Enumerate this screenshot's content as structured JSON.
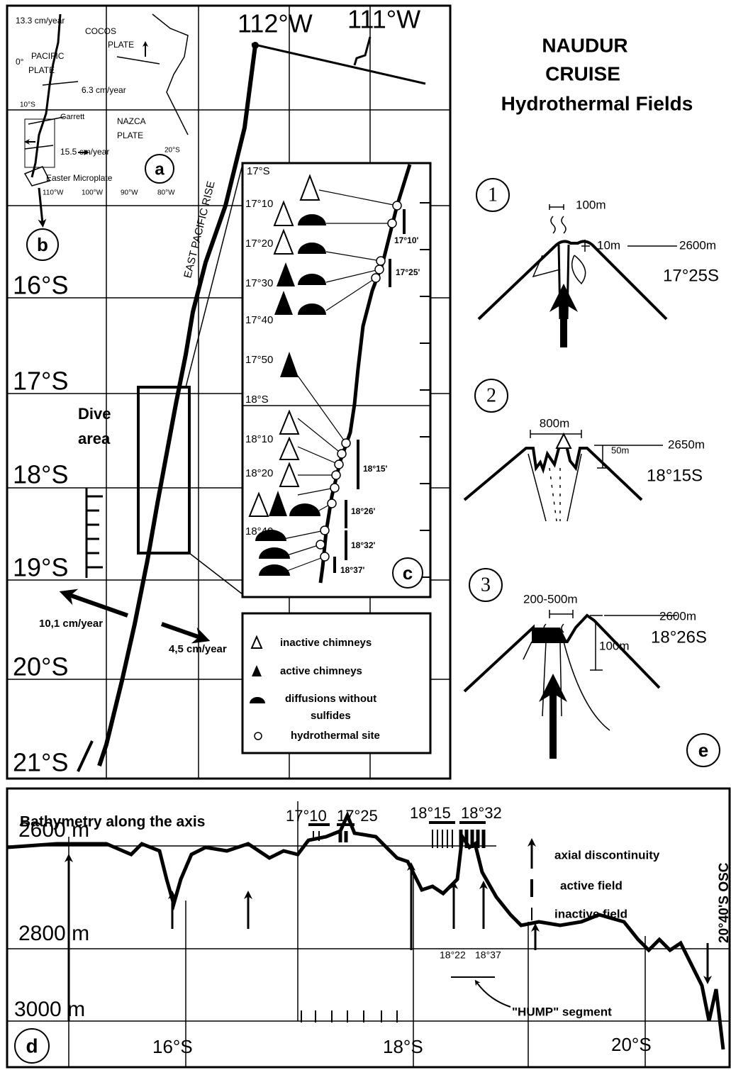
{
  "title": [
    "NAUDUR",
    "CRUISE",
    "Hydrothermal Fields"
  ],
  "map": {
    "longitudes": [
      "112°W",
      "111°W"
    ],
    "latitudes": [
      "16°S",
      "17°S",
      "18°S",
      "19°S",
      "20°S",
      "21°S"
    ],
    "rise_label": "EAST PACIFIC RISE",
    "dive_area": [
      "Dive",
      "area"
    ],
    "rates": [
      "10,1 cm/year",
      "4,5 cm/year"
    ],
    "panel_b": "b"
  },
  "inset_a": {
    "label": "a",
    "rates": [
      "13.3 cm/year",
      "6.3 cm/year",
      "15.5 cm/year"
    ],
    "plates": [
      [
        "COCOS",
        "PLATE"
      ],
      [
        "PACIFIC",
        "PLATE"
      ],
      [
        "NAZCA",
        "PLATE"
      ]
    ],
    "equator": "0°",
    "latitudes": [
      "10°S",
      "20°S"
    ],
    "longitudes": [
      "110°W",
      "100°W",
      "90°W",
      "80°W"
    ],
    "places": [
      "Garrett",
      "Easter Microplate"
    ]
  },
  "inset_c": {
    "label": "c",
    "latitudes": [
      "17°S",
      "17°10",
      "17°20",
      "17°30",
      "17°40",
      "17°50",
      "18°S",
      "18°10",
      "18°20",
      "18°40"
    ],
    "fields": [
      "17°10'",
      "17°25'",
      "18°15'",
      "18°26'",
      "18°32'",
      "18°37'"
    ]
  },
  "legend": [
    "inactive chimneys",
    "active chimneys",
    "diffusions without",
    "sulfides",
    "hydrothermal site"
  ],
  "sections": [
    {
      "number": "1",
      "width": "100m",
      "height": "10m",
      "depth": "2600m",
      "latitude": "17°25S"
    },
    {
      "number": "2",
      "width": "800m",
      "height": "50m",
      "depth": "2650m",
      "latitude": "18°15S"
    },
    {
      "number": "3",
      "width": "200-500m",
      "height": "100m",
      "depth": "2600m",
      "latitude": "18°26S"
    }
  ],
  "sections_label": "e",
  "bathymetry": {
    "label": "d",
    "title": "Bathymetry along the axis",
    "depths": [
      "2600 m",
      "2800 m",
      "3000 m"
    ],
    "fields": [
      "17°10",
      "17°25",
      "18°15",
      "18°32"
    ],
    "legend": [
      "axial discontinuity",
      "active field",
      "inactive field"
    ],
    "osc": "20°40'S OSC",
    "hump_range": [
      "18°22",
      "18°37"
    ],
    "hump": "\"HUMP\" segment",
    "latitudes": [
      "16°S",
      "18°S",
      "20°S"
    ]
  }
}
